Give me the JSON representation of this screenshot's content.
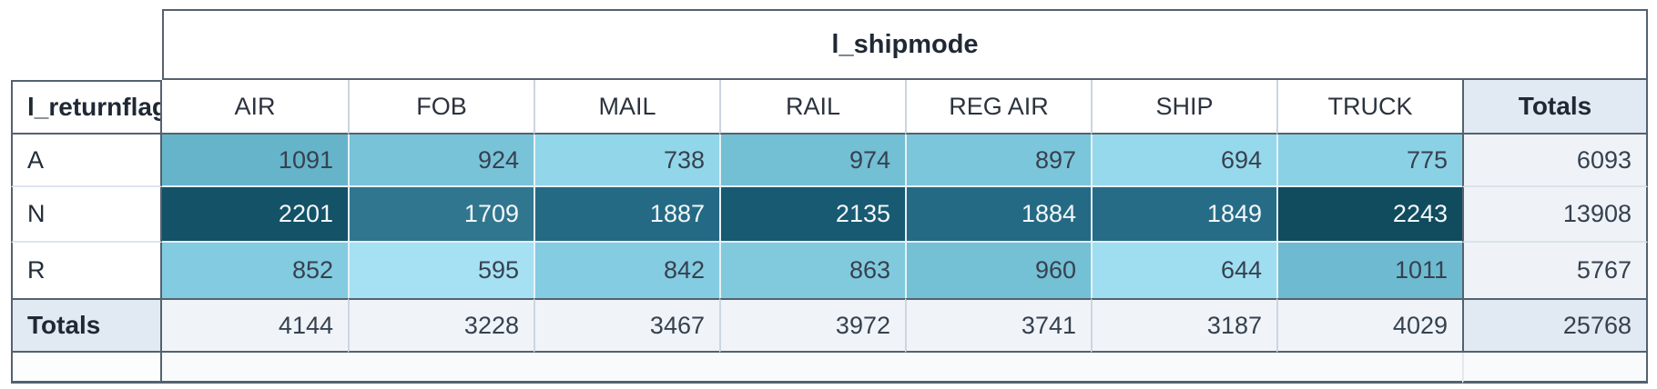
{
  "header": {
    "column_dimension": "l_shipmode",
    "row_dimension": "l_returnflag",
    "totals_label": "Totals"
  },
  "chart_data": {
    "type": "heatmap",
    "column_dimension": "l_shipmode",
    "row_dimension": "l_returnflag",
    "columns": [
      "AIR",
      "FOB",
      "MAIL",
      "RAIL",
      "REG AIR",
      "SHIP",
      "TRUCK"
    ],
    "rows": [
      "A",
      "N",
      "R"
    ],
    "values": [
      [
        1091,
        924,
        738,
        974,
        897,
        694,
        775
      ],
      [
        2201,
        1709,
        1887,
        2135,
        1884,
        1849,
        2243
      ],
      [
        852,
        595,
        842,
        863,
        960,
        644,
        1011
      ]
    ],
    "row_totals": [
      6093,
      13908,
      5767
    ],
    "column_totals": [
      4144,
      3228,
      3467,
      3972,
      3741,
      3187,
      4029
    ],
    "grand_total": 25768,
    "totals_label": "Totals",
    "cell_colors": [
      [
        "#66b4ca",
        "#79c3d9",
        "#92d6ea",
        "#73bfd4",
        "#7cc6db",
        "#97d9ec",
        "#8bd1e6"
      ],
      [
        "#135267",
        "#31768f",
        "#256a84",
        "#175a71",
        "#256a84",
        "#276c86",
        "#104b5e"
      ],
      [
        "#83cbe0",
        "#a5e1f3",
        "#84cce1",
        "#81cade",
        "#74c0d5",
        "#9fdef1",
        "#6ebbd1"
      ]
    ],
    "cell_text_colors": [
      "#36414f",
      "#f3f8fb",
      "#36414f"
    ],
    "color_scale": {
      "min_value": 595,
      "max_value": 2243,
      "min_color": "#a5e1f3",
      "max_color": "#104b5e"
    },
    "legend_position": "none",
    "grid": true
  },
  "style": {
    "frame_border": "#54626f",
    "header_separator": "#cbd5e1",
    "data_cell_separator": "#e7f1f6",
    "totals_header_bg": "#e1e9f2",
    "totals_cell_bg": "#eff3f8",
    "totals_row_bg": "#f0f4f8",
    "footer_bg": "#f8fafb",
    "header_text": "#1f2935",
    "value_text": "#36414f",
    "dark_cell_text": "#f3f8fb"
  }
}
